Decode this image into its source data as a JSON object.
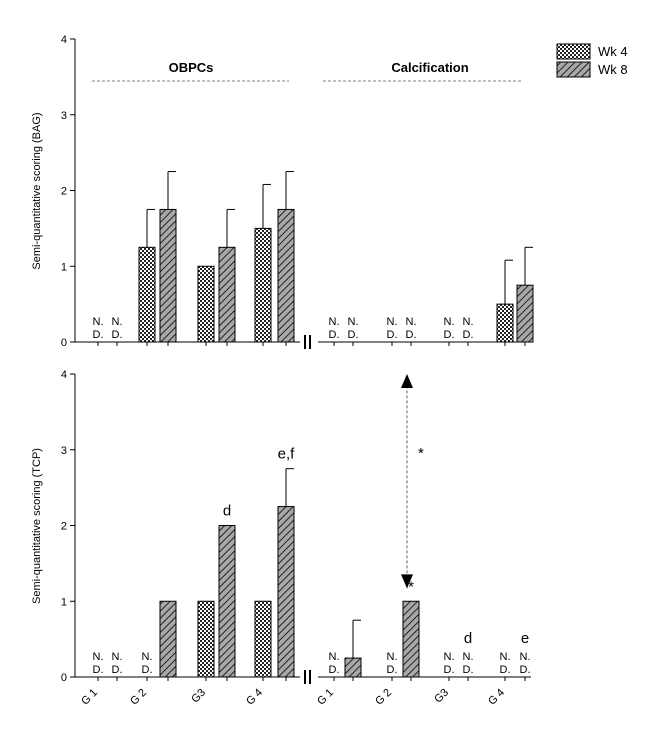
{
  "chart_data": [
    {
      "type": "bar",
      "ylabel": "Semi-quantitative scoring (BAG)",
      "ylim": [
        0,
        4
      ],
      "yticks": [
        "0",
        "1",
        "2",
        "3",
        "4"
      ],
      "sections": [
        "OBPCs",
        "Calcification"
      ],
      "legend": {
        "position": "top-right",
        "entries": [
          "Wk 4",
          "Wk 8"
        ]
      },
      "bars": [
        {
          "section": "OBPCs",
          "group": "G1",
          "series": "Wk 4",
          "value": 0,
          "error": 0,
          "nd": true
        },
        {
          "section": "OBPCs",
          "group": "G1",
          "series": "Wk 8",
          "value": 0,
          "error": 0,
          "nd": true
        },
        {
          "section": "OBPCs",
          "group": "G2",
          "series": "Wk 4",
          "value": 1.25,
          "error": 0.5,
          "nd": false
        },
        {
          "section": "OBPCs",
          "group": "G2",
          "series": "Wk 8",
          "value": 1.75,
          "error": 0.5,
          "nd": false
        },
        {
          "section": "OBPCs",
          "group": "G3",
          "series": "Wk 4",
          "value": 1.0,
          "error": 0,
          "nd": false
        },
        {
          "section": "OBPCs",
          "group": "G3",
          "series": "Wk 8",
          "value": 1.25,
          "error": 0.5,
          "nd": false
        },
        {
          "section": "OBPCs",
          "group": "G4",
          "series": "Wk 4",
          "value": 1.5,
          "error": 0.58,
          "nd": false
        },
        {
          "section": "OBPCs",
          "group": "G4",
          "series": "Wk 8",
          "value": 1.75,
          "error": 0.5,
          "nd": false
        },
        {
          "section": "Calcification",
          "group": "G1",
          "series": "Wk 4",
          "value": 0,
          "error": 0,
          "nd": true
        },
        {
          "section": "Calcification",
          "group": "G1",
          "series": "Wk 8",
          "value": 0,
          "error": 0,
          "nd": true
        },
        {
          "section": "Calcification",
          "group": "G2",
          "series": "Wk 4",
          "value": 0,
          "error": 0,
          "nd": true
        },
        {
          "section": "Calcification",
          "group": "G2",
          "series": "Wk 8",
          "value": 0,
          "error": 0,
          "nd": true
        },
        {
          "section": "Calcification",
          "group": "G3",
          "series": "Wk 4",
          "value": 0,
          "error": 0,
          "nd": true
        },
        {
          "section": "Calcification",
          "group": "G3",
          "series": "Wk 8",
          "value": 0,
          "error": 0,
          "nd": true
        },
        {
          "section": "Calcification",
          "group": "G4",
          "series": "Wk 4",
          "value": 0.5,
          "error": 0.58,
          "nd": false
        },
        {
          "section": "Calcification",
          "group": "G4",
          "series": "Wk 8",
          "value": 0.75,
          "error": 0.5,
          "nd": false
        }
      ]
    },
    {
      "type": "bar",
      "ylabel": "Semi-quantitative scoring (TCP)",
      "ylim": [
        0,
        4
      ],
      "yticks": [
        "0",
        "1",
        "2",
        "3",
        "4"
      ],
      "categories": [
        "G 1",
        "G 2",
        "G3",
        "G 4",
        "G 1",
        "G 2",
        "G3",
        "G 4"
      ],
      "bars": [
        {
          "section": "OBPCs",
          "group": "G1",
          "series": "Wk 4",
          "value": 0,
          "error": 0,
          "nd": true
        },
        {
          "section": "OBPCs",
          "group": "G1",
          "series": "Wk 8",
          "value": 0,
          "error": 0,
          "nd": true
        },
        {
          "section": "OBPCs",
          "group": "G2",
          "series": "Wk 4",
          "value": 0,
          "error": 0,
          "nd": true
        },
        {
          "section": "OBPCs",
          "group": "G2",
          "series": "Wk 8",
          "value": 1.0,
          "error": 0,
          "nd": false
        },
        {
          "section": "OBPCs",
          "group": "G3",
          "series": "Wk 4",
          "value": 1.0,
          "error": 0,
          "nd": false
        },
        {
          "section": "OBPCs",
          "group": "G3",
          "series": "Wk 8",
          "value": 2.0,
          "error": 0,
          "nd": false,
          "annotation": "d"
        },
        {
          "section": "OBPCs",
          "group": "G4",
          "series": "Wk 4",
          "value": 1.0,
          "error": 0,
          "nd": false
        },
        {
          "section": "OBPCs",
          "group": "G4",
          "series": "Wk 8",
          "value": 2.25,
          "error": 0.5,
          "nd": false,
          "annotation": "e,f"
        },
        {
          "section": "Calcification",
          "group": "G1",
          "series": "Wk 4",
          "value": 0,
          "error": 0,
          "nd": true
        },
        {
          "section": "Calcification",
          "group": "G1",
          "series": "Wk 8",
          "value": 0.25,
          "error": 0.5,
          "nd": false
        },
        {
          "section": "Calcification",
          "group": "G2",
          "series": "Wk 4",
          "value": 0,
          "error": 0,
          "nd": true
        },
        {
          "section": "Calcification",
          "group": "G2",
          "series": "Wk 8",
          "value": 1.0,
          "error": 0,
          "nd": false,
          "annotation": "*"
        },
        {
          "section": "Calcification",
          "group": "G3",
          "series": "Wk 4",
          "value": 0,
          "error": 0,
          "nd": true
        },
        {
          "section": "Calcification",
          "group": "G3",
          "series": "Wk 8",
          "value": 0,
          "error": 0,
          "nd": true,
          "annotation": "d"
        },
        {
          "section": "Calcification",
          "group": "G4",
          "series": "Wk 4",
          "value": 0,
          "error": 0,
          "nd": true
        },
        {
          "section": "Calcification",
          "group": "G4",
          "series": "Wk 8",
          "value": 0,
          "error": 0,
          "nd": true,
          "annotation": "e"
        }
      ],
      "significance": {
        "symbol": "*",
        "from_value": 1.25,
        "to_value": 4.0
      }
    }
  ],
  "nd_text": {
    "line1": "N.",
    "line2": "D."
  },
  "colors": {
    "axis": "#000000",
    "bar_stroke": "#000000",
    "dashed": "#808080",
    "wk8_fill": "#9a9a9a",
    "wk4_fill": "#ffffff"
  }
}
